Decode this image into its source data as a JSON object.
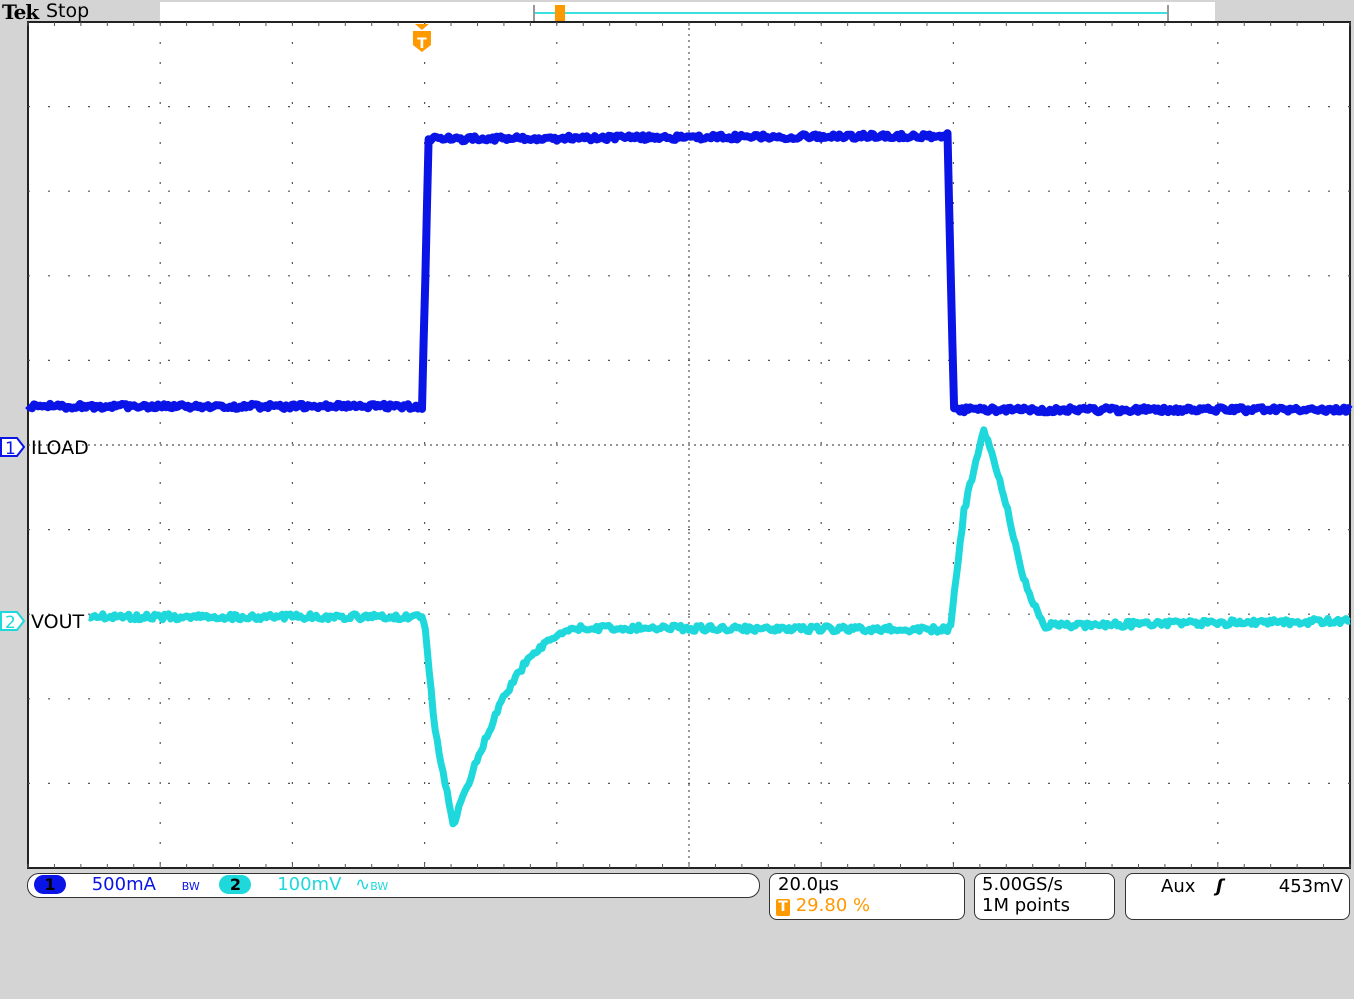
{
  "header": {
    "brand": "Tek",
    "status": "Stop"
  },
  "channels": [
    {
      "number": "1",
      "label": "ILOAD",
      "scale": "500mA",
      "bw_icon": "bandwidth-limit-icon",
      "bw": "BW",
      "color": "#0a14e6"
    },
    {
      "number": "2",
      "label": "VOUT",
      "scale": "100mV",
      "coupling_icon": "ac-coupling-icon",
      "bw": "BW",
      "color": "#1ed8dc"
    }
  ],
  "timebase": {
    "scale": "20.0µs",
    "trigger_position": "29.80 %",
    "trigger_icon": "trigger-position-icon"
  },
  "acquisition": {
    "sample_rate": "5.00GS/s",
    "record_length": "1M points"
  },
  "trigger": {
    "source": "Aux",
    "slope_icon": "rising-edge-icon",
    "level": "453mV"
  },
  "colors": {
    "trigger": "#ff9900",
    "grid": "#555555"
  },
  "chart_data": {
    "type": "line",
    "xlabel": "",
    "ylabel": "",
    "x_unit": "µs",
    "x_per_div": 20,
    "xlim": [
      -59.6,
      140.4
    ],
    "grid": true,
    "series": [
      {
        "name": "ILOAD",
        "unit": "A",
        "per_div": 0.5,
        "points": [
          [
            -59.6,
            0.24
          ],
          [
            0,
            0.24
          ],
          [
            0.5,
            1.0
          ],
          [
            1.0,
            1.82
          ],
          [
            79.5,
            1.84
          ],
          [
            80.0,
            1.0
          ],
          [
            80.5,
            0.22
          ],
          [
            140.4,
            0.22
          ]
        ]
      },
      {
        "name": "VOUT",
        "unit": "mV",
        "per_div": 100,
        "points": [
          [
            -50.4,
            5
          ],
          [
            0,
            5
          ],
          [
            0.5,
            -10
          ],
          [
            2,
            -130
          ],
          [
            4.7,
            -241
          ],
          [
            8,
            -170
          ],
          [
            12,
            -95
          ],
          [
            16,
            -45
          ],
          [
            20,
            -18
          ],
          [
            24,
            -8
          ],
          [
            79.5,
            -10
          ],
          [
            80,
            -5
          ],
          [
            82,
            130
          ],
          [
            85,
            228
          ],
          [
            88,
            150
          ],
          [
            91,
            50
          ],
          [
            94,
            -5
          ],
          [
            97,
            -5
          ],
          [
            140.4,
            0
          ]
        ]
      }
    ]
  }
}
